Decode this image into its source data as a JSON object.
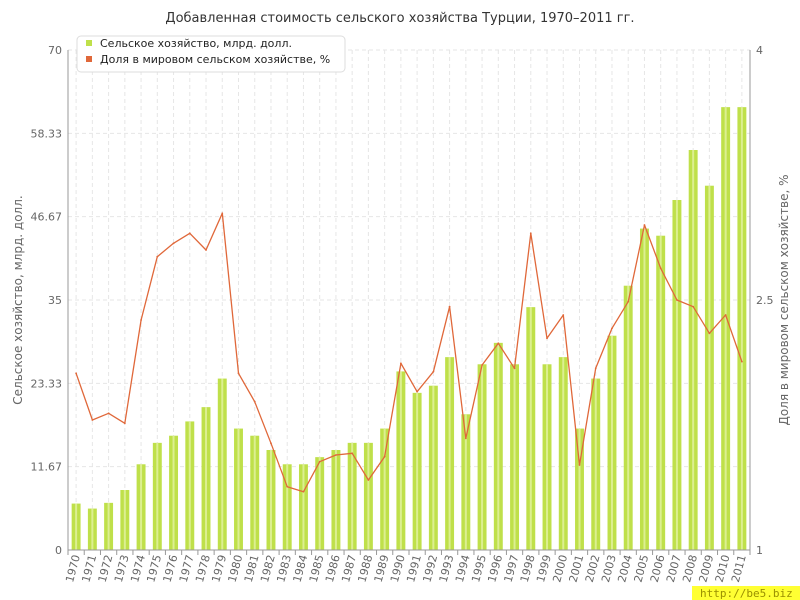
{
  "chart_data": {
    "type": "bar",
    "title": "Добавленная стоимость сельского хозяйства Турции, 1970–2011 гг.",
    "xlabel": "",
    "ylabel": "Сельское хозяйство, млрд. долл.",
    "ylabel_right": "Доля в мировом сельском хозяйстве, %",
    "ylim": [
      0,
      70
    ],
    "ylim_right": [
      1,
      4
    ],
    "yticks": [
      "0",
      "11.67",
      "23.33",
      "35",
      "46.67",
      "58.33",
      "70"
    ],
    "yticks_right": [
      "1",
      "2.5",
      "4"
    ],
    "grid": true,
    "legend_position": "top-left",
    "categories": [
      "1970",
      "1971",
      "1972",
      "1973",
      "1974",
      "1975",
      "1976",
      "1977",
      "1978",
      "1979",
      "1980",
      "1981",
      "1982",
      "1983",
      "1984",
      "1985",
      "1986",
      "1987",
      "1988",
      "1989",
      "1990",
      "1991",
      "1992",
      "1993",
      "1994",
      "1995",
      "1996",
      "1997",
      "1998",
      "1999",
      "2000",
      "2001",
      "2002",
      "2003",
      "2004",
      "2005",
      "2006",
      "2007",
      "2008",
      "2009",
      "2010",
      "2011"
    ],
    "series": [
      {
        "name": "Сельское хозяйство, млрд. долл.",
        "type": "bar",
        "axis": "left",
        "color": "#bfe04a",
        "values": [
          6.5,
          5.8,
          6.6,
          8.4,
          12.0,
          15.0,
          16.0,
          18.0,
          20.0,
          24.0,
          17.0,
          16.0,
          14.0,
          12.0,
          12.0,
          13.0,
          14.0,
          15.0,
          15.0,
          17.0,
          25.0,
          22.0,
          23.0,
          27.0,
          19.0,
          26.0,
          29.0,
          26.0,
          34.0,
          26.0,
          27.0,
          17.0,
          24.0,
          30.0,
          37.0,
          45.0,
          44.0,
          49.0,
          56.0,
          51.0,
          62.0,
          62.0
        ]
      },
      {
        "name": "Доля в мировом сельском хозяйстве, %",
        "type": "line",
        "axis": "right",
        "color": "#e0683a",
        "values": [
          2.06,
          1.78,
          1.82,
          1.76,
          2.38,
          2.76,
          2.84,
          2.9,
          2.8,
          3.02,
          2.06,
          1.89,
          1.64,
          1.38,
          1.35,
          1.53,
          1.57,
          1.58,
          1.42,
          1.56,
          2.12,
          1.95,
          2.07,
          2.46,
          1.67,
          2.11,
          2.24,
          2.09,
          2.9,
          2.27,
          2.41,
          1.51,
          2.09,
          2.33,
          2.49,
          2.95,
          2.69,
          2.5,
          2.46,
          2.3,
          2.41,
          2.13
        ]
      }
    ]
  },
  "watermark": "http://be5.biz"
}
